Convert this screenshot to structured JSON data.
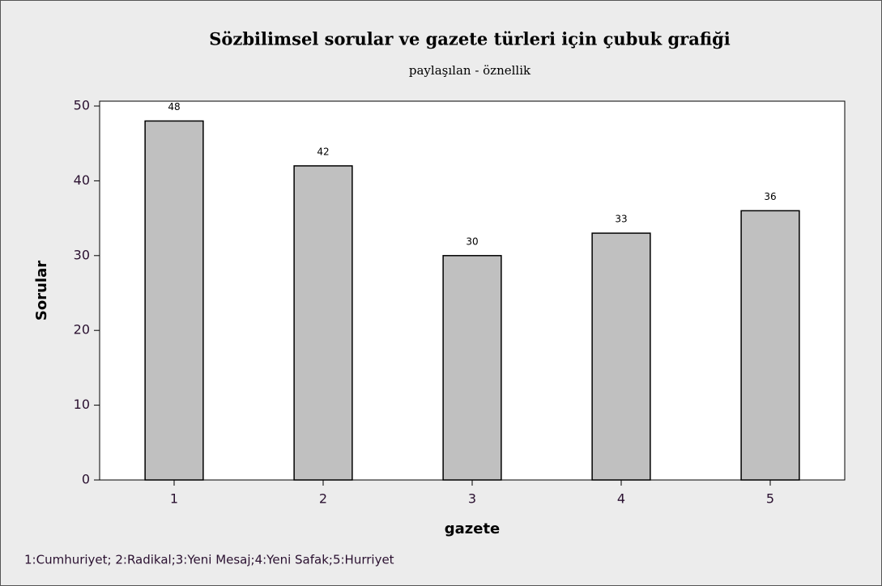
{
  "chart_data": {
    "type": "bar",
    "title": "Sözbilimsel sorular ve gazete türleri için çubuk grafiği",
    "subtitle": "paylaşılan - öznellik",
    "x_label": "gazete",
    "y_label": "Sorular",
    "categories": [
      "1",
      "2",
      "3",
      "4",
      "5"
    ],
    "values": [
      48,
      42,
      30,
      33,
      36
    ],
    "color": "#c0c0c0",
    "ylim": [
      0,
      50
    ],
    "yticks": [
      0,
      10,
      20,
      30,
      40,
      50
    ],
    "grid": false,
    "footnote": "1:Cumhuriyet; 2:Radikal;3:Yeni Mesaj;4:Yeni Safak;5:Hurriyet"
  }
}
